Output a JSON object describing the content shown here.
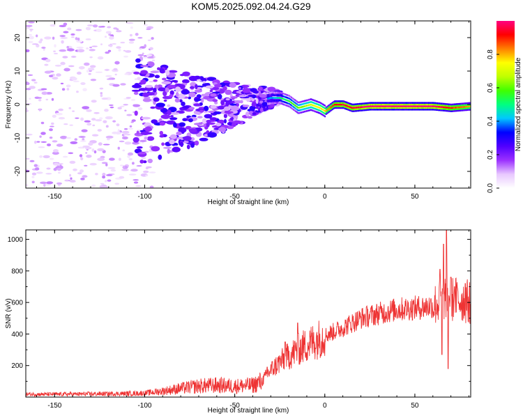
{
  "title": "KOM5.2025.092.04.24.G29",
  "chart_data": [
    {
      "type": "heatmap",
      "xlabel": "Height of straight line (km)",
      "ylabel": "Frequency (Hz)",
      "xlim": [
        -166,
        81
      ],
      "ylim": [
        -25,
        25
      ],
      "x_ticks": [
        -150,
        -100,
        -50,
        0,
        50
      ],
      "y_ticks": [
        -20,
        -10,
        0,
        10,
        20
      ],
      "colorbar": {
        "label": "Normalized spectral amplitude",
        "range": [
          0,
          1
        ],
        "ticks": [
          0.0,
          0.2,
          0.4,
          0.6,
          0.8
        ],
        "colormap": [
          "#ffffff",
          "#e8c8ff",
          "#9b30ff",
          "#5000ff",
          "#0000ff",
          "#00c8ff",
          "#00ff80",
          "#40ff00",
          "#c0ff00",
          "#ffff00",
          "#ff8000",
          "#ff0000",
          "#ff0080"
        ]
      },
      "ridge": [
        {
          "x": -166,
          "y": 0,
          "amp": 0.05
        },
        {
          "x": -120,
          "y": 0,
          "amp": 0.1
        },
        {
          "x": -100,
          "y": -2,
          "amp": 0.15
        },
        {
          "x": -80,
          "y": -2,
          "amp": 0.2
        },
        {
          "x": -60,
          "y": -1,
          "amp": 0.22
        },
        {
          "x": -40,
          "y": 1,
          "amp": 0.28
        },
        {
          "x": -30,
          "y": 2,
          "amp": 0.4
        },
        {
          "x": -25,
          "y": 2,
          "amp": 0.5
        },
        {
          "x": -20,
          "y": 1,
          "amp": 0.55
        },
        {
          "x": -15,
          "y": -1,
          "amp": 0.6
        },
        {
          "x": -8,
          "y": 0,
          "amp": 0.7
        },
        {
          "x": -3,
          "y": -1,
          "amp": 0.75
        },
        {
          "x": 0,
          "y": -2,
          "amp": 0.8
        },
        {
          "x": 5,
          "y": 0,
          "amp": 0.9
        },
        {
          "x": 10,
          "y": 0,
          "amp": 0.95
        },
        {
          "x": 15,
          "y": -1,
          "amp": 0.95
        },
        {
          "x": 25,
          "y": -0.5,
          "amp": 1.0
        },
        {
          "x": 40,
          "y": -0.5,
          "amp": 1.0
        },
        {
          "x": 60,
          "y": -0.5,
          "amp": 1.0
        },
        {
          "x": 70,
          "y": -1,
          "amp": 0.9
        },
        {
          "x": 81,
          "y": -0.5,
          "amp": 0.8
        }
      ]
    },
    {
      "type": "line",
      "xlabel": "Height of straight line (km)",
      "ylabel": "SNR (v/v)",
      "xlim": [
        -166,
        81
      ],
      "ylim": [
        0,
        1060
      ],
      "x_ticks": [
        -150,
        -100,
        -50,
        0,
        50
      ],
      "y_ticks": [
        200,
        400,
        600,
        800,
        1000
      ],
      "color": "#ee3333",
      "series": [
        {
          "x": [
            -166,
            -150,
            -130,
            -110,
            -100,
            -90,
            -80,
            -70,
            -60,
            -50,
            -40,
            -35,
            -30,
            -25,
            -20,
            -15,
            -10,
            -5,
            0,
            10,
            20,
            30,
            40,
            50,
            55,
            60,
            65,
            68,
            70,
            75,
            81
          ],
          "values": [
            18,
            18,
            20,
            22,
            25,
            38,
            55,
            70,
            75,
            70,
            75,
            100,
            170,
            220,
            260,
            300,
            330,
            360,
            390,
            440,
            500,
            530,
            555,
            565,
            570,
            580,
            610,
            650,
            620,
            620,
            600
          ]
        }
      ],
      "spikes": [
        {
          "x": -15,
          "y": 470
        },
        {
          "x": -22,
          "y": 350
        },
        {
          "x": -32,
          "y": 190
        },
        {
          "x": 64,
          "y": 810
        },
        {
          "x": 66,
          "y": 970
        },
        {
          "x": 67.5,
          "y": 1060
        },
        {
          "x": 68.5,
          "y": 180
        },
        {
          "x": 65,
          "y": 270
        },
        {
          "x": 70,
          "y": 760
        },
        {
          "x": 72,
          "y": 700
        },
        {
          "x": 78,
          "y": 720
        }
      ]
    }
  ]
}
